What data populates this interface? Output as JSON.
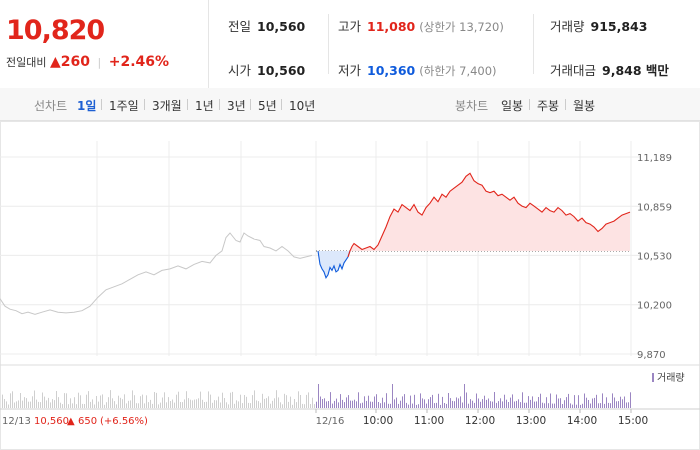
{
  "price": {
    "current": "10,820",
    "change_label": "전일대비",
    "change_arrow": "▲",
    "change_amount": "260",
    "change_pct": "+2.46%"
  },
  "stats": {
    "prev_close": {
      "label": "전일",
      "value": "10,560"
    },
    "high": {
      "label": "고가",
      "value": "11,080",
      "limit_label": "(상한가 13,720)"
    },
    "volume": {
      "label": "거래량",
      "value": "915,843"
    },
    "open": {
      "label": "시가",
      "value": "10,560"
    },
    "low": {
      "label": "저가",
      "value": "10,360",
      "limit_label": "(하한가 7,400)"
    },
    "turnover": {
      "label": "거래대금",
      "value": "9,848 백만"
    }
  },
  "tabs": {
    "line_chart_label": "선차트",
    "line_periods": [
      "1일",
      "1주일",
      "3개월",
      "1년",
      "3년",
      "5년",
      "10년"
    ],
    "active_period": "1일",
    "candle_label": "봉차트",
    "candle_periods": [
      "일봉",
      "주봉",
      "월봉"
    ]
  },
  "colors": {
    "up": "#e1251b",
    "down": "#0f5bdc",
    "prev_day": "#c8c8c8",
    "volume": "#9b86c2"
  },
  "chart_data": {
    "type": "line",
    "prev_close": 10560,
    "ylim": [
      9870,
      11189
    ],
    "y_ticks": [
      "11,189",
      "10,859",
      "10,530",
      "10,200",
      "9,870"
    ],
    "x_ticks": [
      "12/16",
      "10:00",
      "11:00",
      "12:00",
      "13:00",
      "14:00",
      "15:00"
    ],
    "start_label": {
      "date": "12/13",
      "price": "10,560",
      "arrow": "▲",
      "change": "650",
      "pct": "(+6.56%)"
    },
    "volume_legend": "거래량",
    "prev_day_series": [
      [
        0,
        10240
      ],
      [
        5,
        10190
      ],
      [
        10,
        10170
      ],
      [
        16,
        10160
      ],
      [
        22,
        10140
      ],
      [
        28,
        10150
      ],
      [
        35,
        10135
      ],
      [
        42,
        10150
      ],
      [
        50,
        10165
      ],
      [
        58,
        10150
      ],
      [
        66,
        10145
      ],
      [
        74,
        10150
      ],
      [
        82,
        10160
      ],
      [
        90,
        10190
      ],
      [
        98,
        10250
      ],
      [
        106,
        10300
      ],
      [
        114,
        10320
      ],
      [
        122,
        10340
      ],
      [
        130,
        10370
      ],
      [
        138,
        10400
      ],
      [
        146,
        10420
      ],
      [
        154,
        10400
      ],
      [
        162,
        10430
      ],
      [
        170,
        10440
      ],
      [
        178,
        10460
      ],
      [
        186,
        10440
      ],
      [
        194,
        10470
      ],
      [
        202,
        10490
      ],
      [
        210,
        10480
      ],
      [
        216,
        10530
      ],
      [
        222,
        10560
      ],
      [
        226,
        10650
      ],
      [
        230,
        10680
      ],
      [
        236,
        10630
      ],
      [
        240,
        10620
      ],
      [
        244,
        10680
      ],
      [
        248,
        10660
      ],
      [
        254,
        10640
      ],
      [
        260,
        10630
      ],
      [
        264,
        10590
      ],
      [
        270,
        10580
      ],
      [
        276,
        10560
      ],
      [
        282,
        10590
      ],
      [
        288,
        10560
      ],
      [
        294,
        10520
      ],
      [
        300,
        10510
      ],
      [
        306,
        10520
      ],
      [
        312,
        10530
      ]
    ],
    "today_series": [
      [
        318,
        10560
      ],
      [
        320,
        10470
      ],
      [
        322,
        10440
      ],
      [
        324,
        10420
      ],
      [
        326,
        10380
      ],
      [
        328,
        10400
      ],
      [
        330,
        10450
      ],
      [
        332,
        10430
      ],
      [
        334,
        10460
      ],
      [
        336,
        10420
      ],
      [
        338,
        10430
      ],
      [
        340,
        10470
      ],
      [
        342,
        10440
      ],
      [
        344,
        10480
      ],
      [
        346,
        10500
      ],
      [
        348,
        10520
      ],
      [
        350,
        10560
      ],
      [
        352,
        10590
      ],
      [
        354,
        10610
      ],
      [
        358,
        10590
      ],
      [
        362,
        10570
      ],
      [
        366,
        10580
      ],
      [
        370,
        10590
      ],
      [
        374,
        10570
      ],
      [
        378,
        10600
      ],
      [
        382,
        10660
      ],
      [
        386,
        10720
      ],
      [
        390,
        10790
      ],
      [
        394,
        10840
      ],
      [
        398,
        10820
      ],
      [
        402,
        10870
      ],
      [
        406,
        10850
      ],
      [
        410,
        10830
      ],
      [
        414,
        10870
      ],
      [
        418,
        10820
      ],
      [
        422,
        10800
      ],
      [
        426,
        10850
      ],
      [
        430,
        10880
      ],
      [
        434,
        10920
      ],
      [
        438,
        10890
      ],
      [
        442,
        10940
      ],
      [
        446,
        10920
      ],
      [
        450,
        10960
      ],
      [
        454,
        10980
      ],
      [
        458,
        11000
      ],
      [
        462,
        11020
      ],
      [
        466,
        11060
      ],
      [
        470,
        11080
      ],
      [
        474,
        11030
      ],
      [
        478,
        11010
      ],
      [
        482,
        11000
      ],
      [
        486,
        10960
      ],
      [
        490,
        10950
      ],
      [
        494,
        10960
      ],
      [
        498,
        10930
      ],
      [
        502,
        10940
      ],
      [
        506,
        10920
      ],
      [
        510,
        10900
      ],
      [
        514,
        10920
      ],
      [
        518,
        10880
      ],
      [
        522,
        10860
      ],
      [
        526,
        10850
      ],
      [
        530,
        10880
      ],
      [
        534,
        10860
      ],
      [
        538,
        10840
      ],
      [
        542,
        10820
      ],
      [
        546,
        10850
      ],
      [
        550,
        10830
      ],
      [
        554,
        10820
      ],
      [
        558,
        10850
      ],
      [
        562,
        10830
      ],
      [
        566,
        10800
      ],
      [
        570,
        10810
      ],
      [
        574,
        10790
      ],
      [
        578,
        10760
      ],
      [
        582,
        10780
      ],
      [
        586,
        10750
      ],
      [
        590,
        10740
      ],
      [
        594,
        10720
      ],
      [
        598,
        10690
      ],
      [
        602,
        10710
      ],
      [
        606,
        10740
      ],
      [
        610,
        10750
      ],
      [
        614,
        10760
      ],
      [
        618,
        10780
      ],
      [
        622,
        10800
      ],
      [
        626,
        10810
      ],
      [
        630,
        10820
      ]
    ]
  }
}
